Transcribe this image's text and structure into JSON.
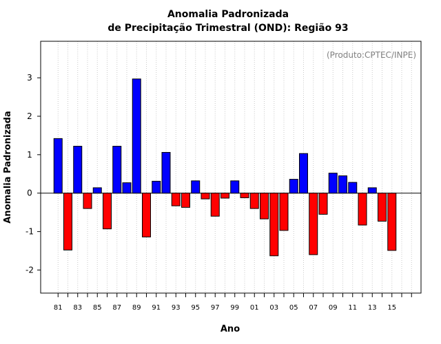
{
  "chart_data": {
    "type": "bar",
    "title_line1": "Anomalia Padronizada",
    "title_line2": "de Precipitação Trimestral (OND): Região 93",
    "annotation": "(Produto:CPTEC/INPE)",
    "xlabel": "Ano",
    "ylabel": "Anomalia Padronizada",
    "ylim": [
      -2.6,
      3.95
    ],
    "yticks": [
      -2,
      -1,
      0,
      1,
      2,
      3
    ],
    "ytick_labels": [
      "-2",
      "-1",
      "0",
      "1",
      "2",
      "3"
    ],
    "grid": "vertical dotted",
    "positive_color": "#0000ff",
    "negative_color": "#ff0000",
    "categories": [
      "81",
      "82",
      "83",
      "84",
      "85",
      "86",
      "87",
      "88",
      "89",
      "90",
      "91",
      "92",
      "93",
      "94",
      "95",
      "96",
      "97",
      "98",
      "99",
      "00",
      "01",
      "02",
      "03",
      "04",
      "05",
      "06",
      "07",
      "08",
      "09",
      "10",
      "11",
      "12",
      "13",
      "14",
      "15",
      "16",
      "17"
    ],
    "xtick_labels": [
      "81",
      "83",
      "85",
      "87",
      "89",
      "91",
      "93",
      "95",
      "97",
      "99",
      "01",
      "03",
      "05",
      "07",
      "09",
      "11",
      "13",
      "15"
    ],
    "values": [
      1.42,
      -1.48,
      1.22,
      -0.4,
      0.14,
      -0.93,
      1.22,
      0.27,
      2.97,
      -1.14,
      0.31,
      1.06,
      -0.33,
      -0.37,
      0.32,
      -0.15,
      -0.6,
      -0.13,
      0.32,
      -0.12,
      -0.4,
      -0.67,
      -1.63,
      -0.97,
      0.36,
      1.03,
      -1.6,
      -0.55,
      0.52,
      0.45,
      0.28,
      -0.83,
      0.14,
      -0.73,
      -1.49,
      null,
      null
    ]
  }
}
